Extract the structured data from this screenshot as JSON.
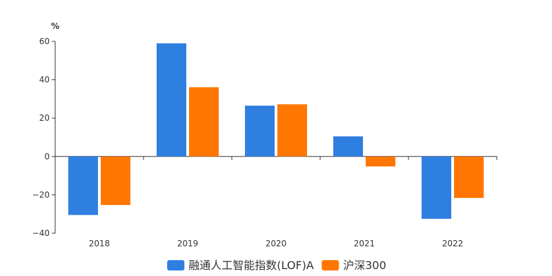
{
  "chart_data": {
    "type": "bar",
    "unit_label": "%",
    "categories": [
      "2018",
      "2019",
      "2020",
      "2021",
      "2022"
    ],
    "series": [
      {
        "name": "融通人工智能指数(LOF)A",
        "color": "#2f7fe0",
        "values": [
          -30.5,
          59.0,
          26.5,
          10.5,
          -32.5
        ]
      },
      {
        "name": "沪深300",
        "color": "#ff7700",
        "values": [
          -25.3,
          36.1,
          27.2,
          -5.2,
          -21.6
        ]
      }
    ],
    "ylim": [
      -40,
      60
    ],
    "yticks": [
      -40,
      -20,
      0,
      20,
      40,
      60
    ],
    "grid": false,
    "legend_position": "bottom-center"
  }
}
